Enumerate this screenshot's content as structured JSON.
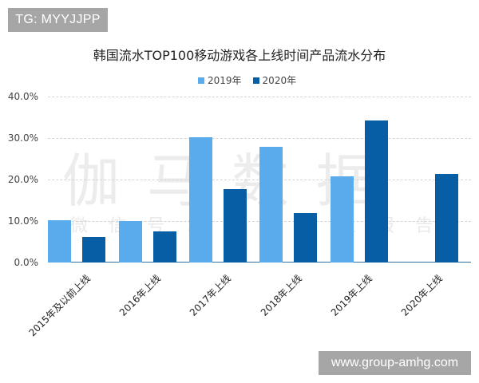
{
  "badges": {
    "tag": "TG: MYYJJPP",
    "url": "www.group-amhg.com"
  },
  "watermark": {
    "main": "伽马数据",
    "sub": "微信号：游戏产业报告"
  },
  "colors": {
    "series_2019": "#5aabeb",
    "series_2020": "#075ea4",
    "axis": "#2f6f9f",
    "grid": "#d4d4d4",
    "badge_bg": "#a6a6a6"
  },
  "chart_data": {
    "type": "bar",
    "title": "韩国流水TOP100移动游戏各上线时间产品流水分布",
    "xlabel": "",
    "ylabel": "",
    "ylim": [
      0,
      40
    ],
    "yticks": [
      "0.0%",
      "10.0%",
      "20.0%",
      "30.0%",
      "40.0%"
    ],
    "grid": true,
    "legend_position": "top",
    "categories": [
      "2015年及以前上线",
      "2016年上线",
      "2017年上线",
      "2018年上线",
      "2019年上线",
      "2020年上线"
    ],
    "series": [
      {
        "name": "2019年",
        "color": "#5aabeb",
        "values": [
          10.2,
          10.0,
          30.2,
          27.9,
          20.8,
          0
        ]
      },
      {
        "name": "2020年",
        "color": "#075ea4",
        "values": [
          6.2,
          7.5,
          17.7,
          11.9,
          34.2,
          21.3
        ]
      }
    ]
  }
}
